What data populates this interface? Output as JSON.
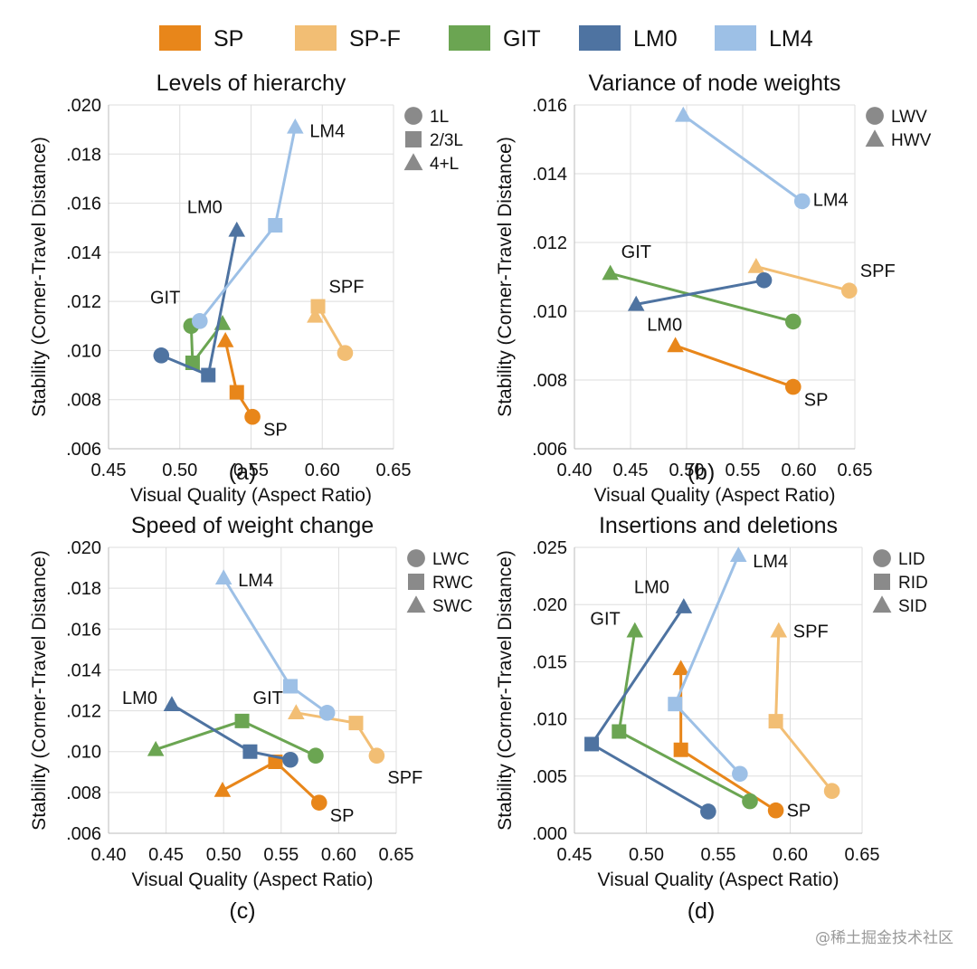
{
  "colors": {
    "SP": "#E8861A",
    "SP-F": "#F2BE74",
    "GIT": "#6BA552",
    "LM0": "#4E73A1",
    "LM4": "#9DC0E6"
  },
  "legend": [
    {
      "label": "SP",
      "color": "#E8861A"
    },
    {
      "label": "SP-F",
      "color": "#F2BE74"
    },
    {
      "label": "GIT",
      "color": "#6BA552"
    },
    {
      "label": "LM0",
      "color": "#4E73A1"
    },
    {
      "label": "LM4",
      "color": "#9DC0E6"
    }
  ],
  "watermark": "@稀土掘金技术社区",
  "chart_data": [
    {
      "type": "scatter",
      "caption": "(a)",
      "title": "Levels of hierarchy",
      "xlabel": "Visual Quality (Aspect Ratio)",
      "ylabel": "Stability (Corner-Travel Distance)",
      "xlim": [
        0.45,
        0.65
      ],
      "ylim": [
        0.006,
        0.02
      ],
      "xticks": [
        0.45,
        0.5,
        0.55,
        0.6,
        0.65
      ],
      "xtick_labels": [
        "0.45",
        "0.50",
        "0.55",
        "0.60",
        "0.65"
      ],
      "yticks": [
        0.006,
        0.008,
        0.01,
        0.012,
        0.014,
        0.016,
        0.018,
        0.02
      ],
      "ytick_labels": [
        ".006",
        ".008",
        ".010",
        ".012",
        ".014",
        ".016",
        ".018",
        ".020"
      ],
      "shape_legend": [
        {
          "shape": "circle",
          "label": "1L"
        },
        {
          "shape": "square",
          "label": "2/3L"
        },
        {
          "shape": "triangle",
          "label": "4+L"
        }
      ],
      "series": [
        {
          "name": "SP",
          "label": "SP",
          "points": [
            {
              "shape": "circle",
              "x": 0.551,
              "y": 0.0073
            },
            {
              "shape": "square",
              "x": 0.54,
              "y": 0.0083
            },
            {
              "shape": "triangle",
              "x": 0.532,
              "y": 0.0104
            }
          ]
        },
        {
          "name": "SP-F",
          "label": "SPF",
          "points": [
            {
              "shape": "circle",
              "x": 0.616,
              "y": 0.0099
            },
            {
              "shape": "square",
              "x": 0.597,
              "y": 0.0118
            },
            {
              "shape": "triangle",
              "x": 0.595,
              "y": 0.0114
            }
          ]
        },
        {
          "name": "GIT",
          "label": "GIT",
          "points": [
            {
              "shape": "circle",
              "x": 0.508,
              "y": 0.011
            },
            {
              "shape": "square",
              "x": 0.509,
              "y": 0.0095
            },
            {
              "shape": "triangle",
              "x": 0.53,
              "y": 0.0111
            }
          ]
        },
        {
          "name": "LM0",
          "label": "LM0",
          "points": [
            {
              "shape": "circle",
              "x": 0.487,
              "y": 0.0098
            },
            {
              "shape": "square",
              "x": 0.52,
              "y": 0.009
            },
            {
              "shape": "triangle",
              "x": 0.54,
              "y": 0.0149
            }
          ]
        },
        {
          "name": "LM4",
          "label": "LM4",
          "points": [
            {
              "shape": "circle",
              "x": 0.514,
              "y": 0.0112
            },
            {
              "shape": "square",
              "x": 0.567,
              "y": 0.0151
            },
            {
              "shape": "triangle",
              "x": 0.581,
              "y": 0.0191
            }
          ]
        }
      ]
    },
    {
      "type": "scatter",
      "caption": "(b)",
      "title": "Variance of node weights",
      "xlabel": "Visual Quality (Aspect Ratio)",
      "ylabel": "Stability (Corner-Travel Distance)",
      "xlim": [
        0.4,
        0.65
      ],
      "ylim": [
        0.006,
        0.016
      ],
      "xticks": [
        0.4,
        0.45,
        0.5,
        0.55,
        0.6,
        0.65
      ],
      "xtick_labels": [
        "0.40",
        "0.45",
        "0.50",
        "0.55",
        "0.60",
        "0.65"
      ],
      "yticks": [
        0.006,
        0.008,
        0.01,
        0.012,
        0.014,
        0.016
      ],
      "ytick_labels": [
        ".006",
        ".008",
        ".010",
        ".012",
        ".014",
        ".016"
      ],
      "shape_legend": [
        {
          "shape": "circle",
          "label": "LWV"
        },
        {
          "shape": "triangle",
          "label": "HWV"
        }
      ],
      "series": [
        {
          "name": "SP",
          "label": "SP",
          "points": [
            {
              "shape": "circle",
              "x": 0.595,
              "y": 0.0078
            },
            {
              "shape": "triangle",
              "x": 0.49,
              "y": 0.009
            }
          ]
        },
        {
          "name": "SP-F",
          "label": "SPF",
          "points": [
            {
              "shape": "circle",
              "x": 0.645,
              "y": 0.0106
            },
            {
              "shape": "triangle",
              "x": 0.562,
              "y": 0.0113
            }
          ]
        },
        {
          "name": "GIT",
          "label": "GIT",
          "points": [
            {
              "shape": "circle",
              "x": 0.595,
              "y": 0.0097
            },
            {
              "shape": "triangle",
              "x": 0.432,
              "y": 0.0111
            }
          ]
        },
        {
          "name": "LM0",
          "label": "LM0",
          "points": [
            {
              "shape": "circle",
              "x": 0.569,
              "y": 0.0109
            },
            {
              "shape": "triangle",
              "x": 0.455,
              "y": 0.0102
            }
          ]
        },
        {
          "name": "LM4",
          "label": "LM4",
          "points": [
            {
              "shape": "circle",
              "x": 0.603,
              "y": 0.0132
            },
            {
              "shape": "triangle",
              "x": 0.497,
              "y": 0.0157
            }
          ]
        }
      ]
    },
    {
      "type": "scatter",
      "caption": "(c)",
      "title": "Speed of weight change",
      "xlabel": "Visual Quality (Aspect Ratio)",
      "ylabel": "Stability (Corner-Travel Distance)",
      "xlim": [
        0.4,
        0.65
      ],
      "ylim": [
        0.006,
        0.02
      ],
      "xticks": [
        0.4,
        0.45,
        0.5,
        0.55,
        0.6,
        0.65
      ],
      "xtick_labels": [
        "0.40",
        "0.45",
        "0.50",
        "0.55",
        "0.60",
        "0.65"
      ],
      "yticks": [
        0.006,
        0.008,
        0.01,
        0.012,
        0.014,
        0.016,
        0.018,
        0.02
      ],
      "ytick_labels": [
        ".006",
        ".008",
        ".010",
        ".012",
        ".014",
        ".016",
        ".018",
        ".020"
      ],
      "shape_legend": [
        {
          "shape": "circle",
          "label": "LWC"
        },
        {
          "shape": "square",
          "label": "RWC"
        },
        {
          "shape": "triangle",
          "label": "SWC"
        }
      ],
      "series": [
        {
          "name": "SP",
          "label": "SP",
          "points": [
            {
              "shape": "circle",
              "x": 0.583,
              "y": 0.0075
            },
            {
              "shape": "square",
              "x": 0.545,
              "y": 0.0095
            },
            {
              "shape": "triangle",
              "x": 0.499,
              "y": 0.0081
            }
          ]
        },
        {
          "name": "SP-F",
          "label": "SPF",
          "points": [
            {
              "shape": "circle",
              "x": 0.633,
              "y": 0.0098
            },
            {
              "shape": "square",
              "x": 0.615,
              "y": 0.0114
            },
            {
              "shape": "triangle",
              "x": 0.563,
              "y": 0.0119
            }
          ]
        },
        {
          "name": "GIT",
          "label": "GIT",
          "points": [
            {
              "shape": "circle",
              "x": 0.58,
              "y": 0.0098
            },
            {
              "shape": "square",
              "x": 0.516,
              "y": 0.0115
            },
            {
              "shape": "triangle",
              "x": 0.441,
              "y": 0.0101
            }
          ]
        },
        {
          "name": "LM0",
          "label": "LM0",
          "points": [
            {
              "shape": "circle",
              "x": 0.558,
              "y": 0.0096
            },
            {
              "shape": "square",
              "x": 0.523,
              "y": 0.01
            },
            {
              "shape": "triangle",
              "x": 0.455,
              "y": 0.0123
            }
          ]
        },
        {
          "name": "LM4",
          "label": "LM4",
          "points": [
            {
              "shape": "circle",
              "x": 0.59,
              "y": 0.0119
            },
            {
              "shape": "square",
              "x": 0.558,
              "y": 0.0132
            },
            {
              "shape": "triangle",
              "x": 0.5,
              "y": 0.0185
            }
          ]
        }
      ]
    },
    {
      "type": "scatter",
      "caption": "(d)",
      "title": "Insertions and deletions",
      "xlabel": "Visual Quality (Aspect Ratio)",
      "ylabel": "Stability (Corner-Travel Distance)",
      "xlim": [
        0.45,
        0.65
      ],
      "ylim": [
        0.0,
        0.025
      ],
      "xticks": [
        0.45,
        0.5,
        0.55,
        0.6,
        0.65
      ],
      "xtick_labels": [
        "0.45",
        "0.50",
        "0.55",
        "0.60",
        "0.65"
      ],
      "yticks": [
        0.0,
        0.005,
        0.01,
        0.015,
        0.02,
        0.025
      ],
      "ytick_labels": [
        ".000",
        ".005",
        ".010",
        ".015",
        ".020",
        ".025"
      ],
      "shape_legend": [
        {
          "shape": "circle",
          "label": "LID"
        },
        {
          "shape": "square",
          "label": "RID"
        },
        {
          "shape": "triangle",
          "label": "SID"
        }
      ],
      "series": [
        {
          "name": "SP",
          "label": "SP",
          "points": [
            {
              "shape": "circle",
              "x": 0.59,
              "y": 0.002
            },
            {
              "shape": "square",
              "x": 0.524,
              "y": 0.0073
            },
            {
              "shape": "triangle",
              "x": 0.524,
              "y": 0.0144
            }
          ]
        },
        {
          "name": "SP-F",
          "label": "SPF",
          "points": [
            {
              "shape": "circle",
              "x": 0.629,
              "y": 0.0037
            },
            {
              "shape": "square",
              "x": 0.59,
              "y": 0.0098
            },
            {
              "shape": "triangle",
              "x": 0.592,
              "y": 0.0177
            }
          ]
        },
        {
          "name": "GIT",
          "label": "GIT",
          "points": [
            {
              "shape": "circle",
              "x": 0.572,
              "y": 0.0028
            },
            {
              "shape": "square",
              "x": 0.481,
              "y": 0.0089
            },
            {
              "shape": "triangle",
              "x": 0.492,
              "y": 0.0177
            }
          ]
        },
        {
          "name": "LM0",
          "label": "LM0",
          "points": [
            {
              "shape": "circle",
              "x": 0.543,
              "y": 0.0019
            },
            {
              "shape": "square",
              "x": 0.462,
              "y": 0.0078
            },
            {
              "shape": "triangle",
              "x": 0.526,
              "y": 0.0198
            }
          ]
        },
        {
          "name": "LM4",
          "label": "LM4",
          "points": [
            {
              "shape": "circle",
              "x": 0.565,
              "y": 0.0052
            },
            {
              "shape": "square",
              "x": 0.52,
              "y": 0.0113
            },
            {
              "shape": "triangle",
              "x": 0.564,
              "y": 0.0243
            }
          ]
        }
      ]
    }
  ]
}
